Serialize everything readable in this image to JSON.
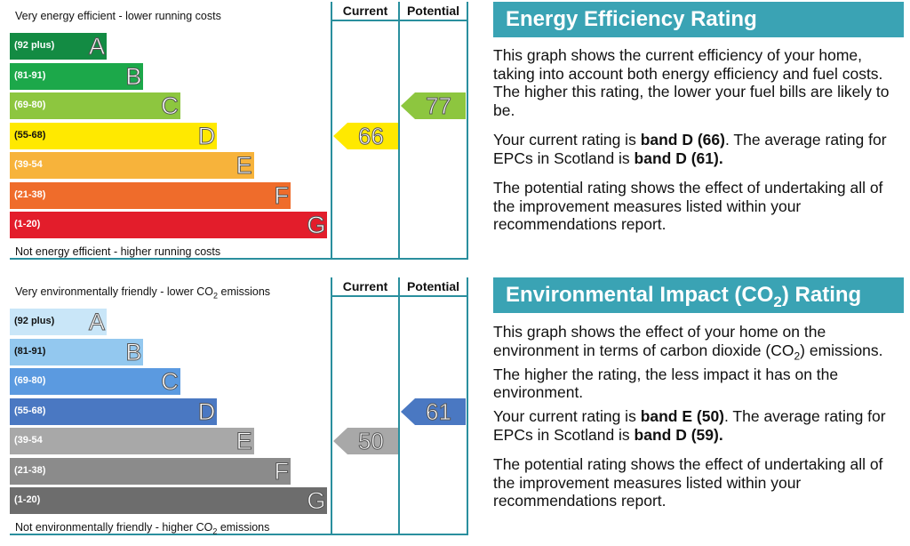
{
  "chart_data": [
    {
      "type": "bar",
      "name": "energy-efficiency",
      "top_note": "Very energy efficient - lower running costs",
      "bottom_note": "Not energy efficient - higher running costs",
      "columns": [
        "Current",
        "Potential"
      ],
      "bands": [
        {
          "letter": "A",
          "range": "(92 plus)",
          "color": "#138b43"
        },
        {
          "letter": "B",
          "range": "(81-91)",
          "color": "#1ca84a"
        },
        {
          "letter": "C",
          "range": "(69-80)",
          "color": "#8dc63f"
        },
        {
          "letter": "D",
          "range": "(55-68)",
          "color": "#ffe900"
        },
        {
          "letter": "E",
          "range": "(39-54",
          "color": "#f7b33b"
        },
        {
          "letter": "F",
          "range": "(21-38)",
          "color": "#ef6c2b"
        },
        {
          "letter": "G",
          "range": "(1-20)",
          "color": "#e31d2b"
        }
      ],
      "current": {
        "value": 66,
        "band": "D",
        "color": "#ffe900"
      },
      "potential": {
        "value": 77,
        "band": "C",
        "color": "#8dc63f"
      }
    },
    {
      "type": "bar",
      "name": "environmental-impact",
      "top_note": "Very environmentally friendly - lower CO",
      "top_note_sub": "2",
      "top_note_end": " emissions",
      "bottom_note": "Not environmentally friendly - higher CO",
      "bottom_note_sub": "2",
      "bottom_note_end": " emissions",
      "columns": [
        "Current",
        "Potential"
      ],
      "bands": [
        {
          "letter": "A",
          "range": "(92 plus)",
          "color": "#c9e6f8"
        },
        {
          "letter": "B",
          "range": "(81-91)",
          "color": "#93c8ef"
        },
        {
          "letter": "C",
          "range": "(69-80)",
          "color": "#5b9ae0"
        },
        {
          "letter": "D",
          "range": "(55-68)",
          "color": "#4a78c2"
        },
        {
          "letter": "E",
          "range": "(39-54",
          "color": "#a8a8a8"
        },
        {
          "letter": "F",
          "range": "(21-38)",
          "color": "#8b8b8b"
        },
        {
          "letter": "G",
          "range": "(1-20)",
          "color": "#6d6d6d"
        }
      ],
      "current": {
        "value": 50,
        "band": "E",
        "color": "#a8a8a8"
      },
      "potential": {
        "value": 61,
        "band": "D",
        "color": "#4a78c2"
      }
    }
  ],
  "ee_text": {
    "heading": "Energy Efficiency Rating",
    "p1": "This graph shows the current efficiency of your home, taking into account both energy efficiency and fuel costs. The higher this rating, the lower your fuel bills are likely to be.",
    "p2_a": "Your current rating is ",
    "p2_b": "band D (66)",
    "p2_c": ". The average rating for EPCs in Scotland is ",
    "p2_d": "band D (61).",
    "p3": "The potential rating shows the effect of undertaking all of the improvement measures listed within your recommendations report."
  },
  "ei_text": {
    "heading_a": "Environmental Impact (CO",
    "heading_sub": "2",
    "heading_b": ") Rating",
    "p1_a": "This graph shows the effect of your home on the environment in terms of carbon dioxide (CO",
    "p1_sub": "2",
    "p1_b": ") emissions. The higher the rating, the less impact it has on the environment.",
    "p2_a": "Your current rating is ",
    "p2_b": "band E (50)",
    "p2_c": ". The average rating for EPCs in Scotland is ",
    "p2_d": "band D (59).",
    "p3": "The potential rating shows the effect of undertaking all of the improvement measures listed within your recommendations report."
  }
}
